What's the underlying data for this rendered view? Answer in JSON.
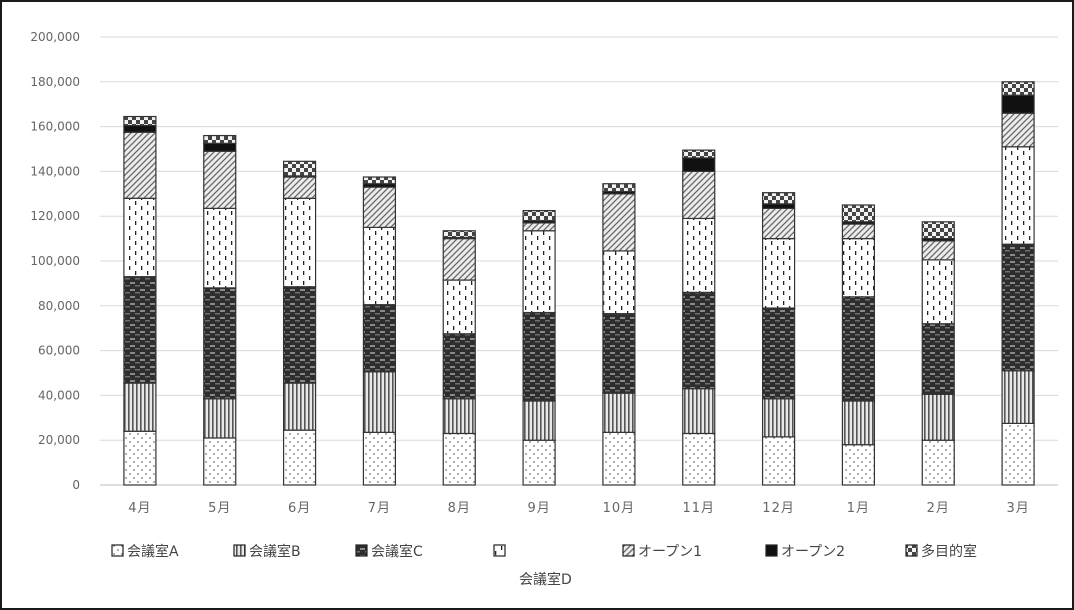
{
  "chart_data": {
    "type": "bar",
    "stacked": true,
    "categories": [
      "4月",
      "5月",
      "6月",
      "7月",
      "8月",
      "9月",
      "10月",
      "11月",
      "12月",
      "1月",
      "2月",
      "3月"
    ],
    "series": [
      {
        "name": "会議室A",
        "pattern": "dots",
        "values": [
          24000,
          21000,
          24500,
          23500,
          23000,
          20000,
          23500,
          23000,
          21500,
          18000,
          20000,
          27500
        ]
      },
      {
        "name": "会議室B",
        "pattern": "vertical-lines",
        "values": [
          21500,
          17500,
          21000,
          27000,
          15500,
          17500,
          17500,
          20000,
          17000,
          19500,
          20500,
          23500
        ]
      },
      {
        "name": "会議室C",
        "pattern": "dark-horizontal",
        "values": [
          47500,
          49500,
          43000,
          30000,
          29000,
          39500,
          35500,
          43000,
          40500,
          46500,
          31500,
          56500
        ]
      },
      {
        "name": "会議室D",
        "pattern": "dashes",
        "values": [
          35000,
          35500,
          39500,
          34500,
          24000,
          36500,
          28000,
          33000,
          31000,
          26000,
          28500,
          43500
        ]
      },
      {
        "name": "オープン1",
        "pattern": "diagonal",
        "values": [
          29500,
          25500,
          9500,
          18000,
          18500,
          3500,
          25500,
          21000,
          13500,
          6500,
          8500,
          15000
        ]
      },
      {
        "name": "オープン2",
        "pattern": "solid-black",
        "values": [
          3000,
          3500,
          500,
          1500,
          500,
          1000,
          1000,
          6000,
          2000,
          1000,
          1000,
          8000
        ]
      },
      {
        "name": "多目的室",
        "pattern": "checker",
        "values": [
          4000,
          3500,
          6500,
          3000,
          3000,
          4500,
          3500,
          3500,
          5000,
          7500,
          7500,
          6000
        ]
      }
    ],
    "ylim": [
      0,
      200000
    ],
    "yticks": [
      "0",
      "20,000",
      "40,000",
      "60,000",
      "80,000",
      "100,000",
      "120,000",
      "140,000",
      "160,000",
      "180,000",
      "200,000"
    ],
    "grid": true,
    "legend_position": "bottom",
    "legend_items": [
      "会議室A",
      "会議室B",
      "会議室C",
      "",
      "オープン1",
      "オープン2",
      "多目的室"
    ],
    "legend_wrapped_label": "会議室D",
    "colors": {
      "gridline": "#d9d9d9",
      "axis_text": "#666666",
      "bar_outline": "#333333"
    }
  }
}
